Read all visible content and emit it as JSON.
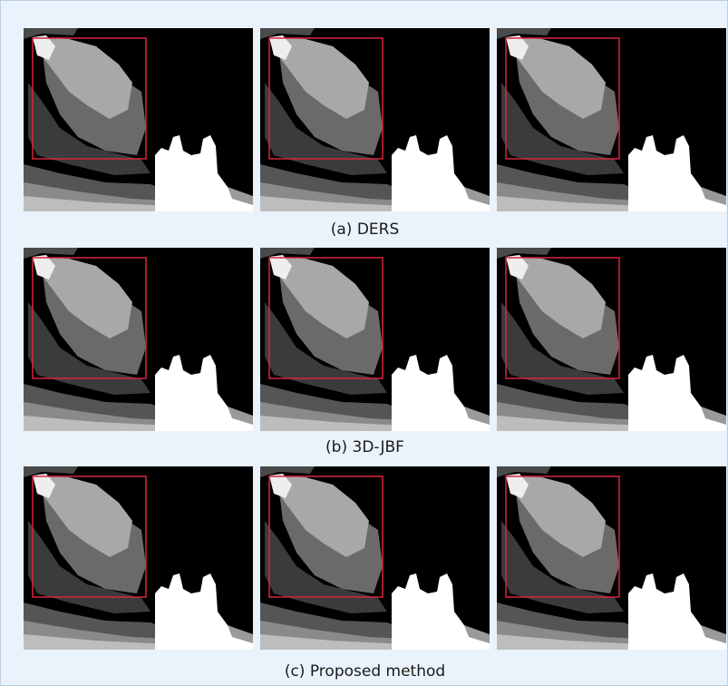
{
  "captions": [
    "(a) DERS",
    "(b) 3D-JBF",
    "(c) Proposed method"
  ]
}
